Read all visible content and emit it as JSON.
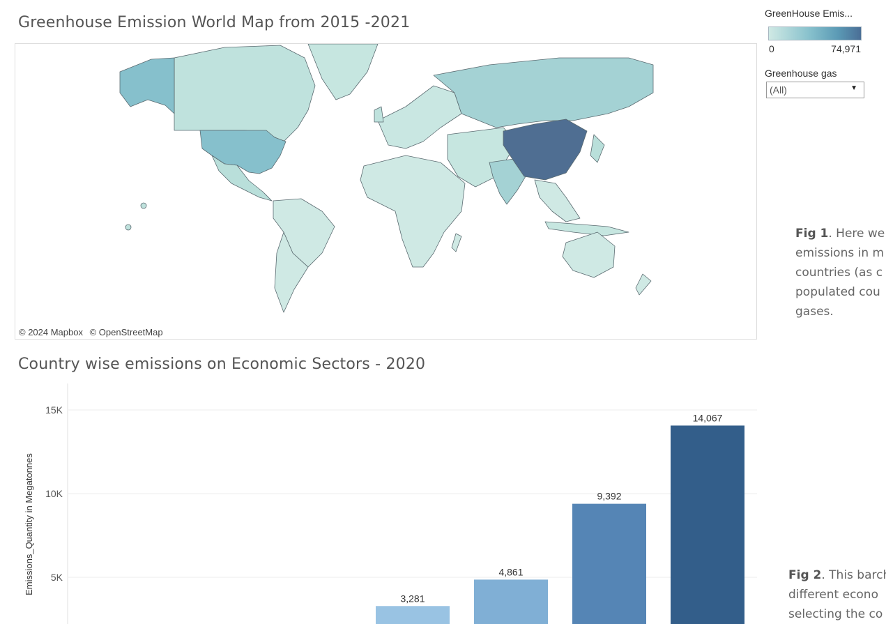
{
  "map": {
    "title": "Greenhouse Emission  World Map from 2015 -2021",
    "attribution": [
      "© 2024 Mapbox",
      "© OpenStreetMap"
    ],
    "fill_colors": {
      "low": "#cfe9e4",
      "medium": "#a4d2d4",
      "high": "#86c0cc",
      "highest": "#4f6e92",
      "border": "#5a6a70"
    }
  },
  "legend": {
    "color_title": "GreenHouse Emis...",
    "min_label": "0",
    "max_label": "74,971",
    "gas_filter_title": "Greenhouse gas",
    "gas_filter_value": "(All)"
  },
  "captions": {
    "fig1_label": "Fig 1",
    "fig1_lines": [
      ". Here we",
      "emissions in m",
      "countries (as c",
      "populated cou",
      "gases."
    ],
    "fig2_label": "Fig 2",
    "fig2_lines": [
      ". This barch",
      "different econo",
      "selecting the co"
    ]
  },
  "chart_data": {
    "type": "bar",
    "title": "Country wise emissions on Economic Sectors - 2020",
    "ylabel": "Emissions_Quantity in Megatonnes",
    "yticks": [
      "5K",
      "10K",
      "15K"
    ],
    "ytick_values": [
      5000,
      10000,
      15000
    ],
    "ylim": [
      0,
      15000
    ],
    "values": [
      3281,
      4861,
      9392,
      14067
    ],
    "value_labels": [
      "3,281",
      "4,861",
      "9,392",
      "14,067"
    ],
    "bar_colors": [
      "#99c3e3",
      "#80afd5",
      "#5585b5",
      "#335e8a"
    ],
    "grid": true
  }
}
